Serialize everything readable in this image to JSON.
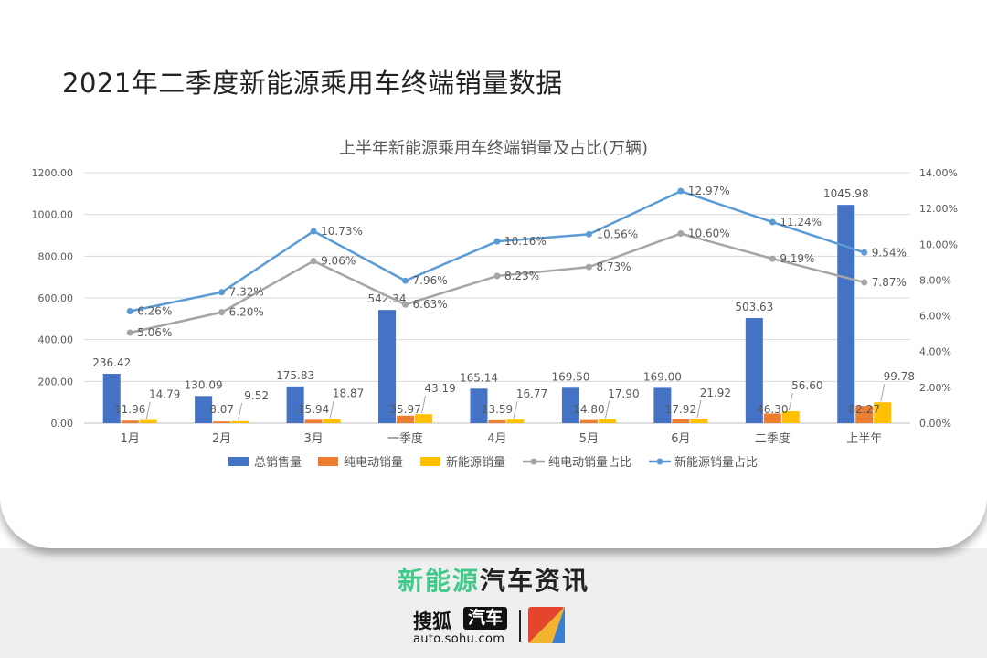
{
  "page_title": "2021年二季度新能源乘用车终端销量数据",
  "footer": {
    "brand_green": "新能源",
    "brand_dark": "汽车资讯",
    "logo_text": "搜狐",
    "logo_badge": "汽车",
    "logo_url": "auto.sohu.com"
  },
  "chart_data": {
    "type": "bar",
    "title": "上半年新能源乘用车终端销量及占比(万辆)",
    "categories": [
      "1月",
      "2月",
      "3月",
      "一季度",
      "4月",
      "5月",
      "6月",
      "二季度",
      "上半年"
    ],
    "series": [
      {
        "name": "总销售量",
        "type": "bar",
        "axis": "left",
        "color": "#4472c4",
        "values": [
          236.42,
          130.09,
          175.83,
          542.34,
          165.14,
          169.5,
          169.0,
          503.63,
          1045.98
        ],
        "labels": [
          "236.42",
          "130.09",
          "175.83",
          "542.34",
          "165.14",
          "169.50",
          "169.00",
          "503.63",
          "1045.98"
        ]
      },
      {
        "name": "纯电动销量",
        "type": "bar",
        "axis": "left",
        "color": "#ed7d31",
        "values": [
          11.96,
          8.07,
          15.94,
          35.97,
          13.59,
          14.8,
          17.92,
          46.3,
          82.27
        ],
        "labels": [
          "11.96",
          "8.07",
          "15.94",
          "35.97",
          "13.59",
          "14.80",
          "17.92",
          "46.30",
          "82.27"
        ]
      },
      {
        "name": "新能源销量",
        "type": "bar",
        "axis": "left",
        "color": "#ffc000",
        "values": [
          14.79,
          9.52,
          18.87,
          43.19,
          16.77,
          17.9,
          21.92,
          56.6,
          99.78
        ],
        "labels": [
          "14.79",
          "9.52",
          "18.87",
          "43.19",
          "16.77",
          "17.90",
          "21.92",
          "56.60",
          "99.78"
        ]
      },
      {
        "name": "纯电动销量占比",
        "type": "line",
        "axis": "right",
        "color": "#a5a5a5",
        "values": [
          5.06,
          6.2,
          9.06,
          6.63,
          8.23,
          8.73,
          10.6,
          9.19,
          7.87
        ],
        "labels": [
          "5.06%",
          "6.20%",
          "9.06%",
          "6.63%",
          "8.23%",
          "8.73%",
          "10.60%",
          "9.19%",
          "7.87%"
        ]
      },
      {
        "name": "新能源销量占比",
        "type": "line",
        "axis": "right",
        "color": "#5b9bd5",
        "values": [
          6.26,
          7.32,
          10.73,
          7.96,
          10.16,
          10.56,
          12.97,
          11.24,
          9.54
        ],
        "labels": [
          "6.26%",
          "7.32%",
          "10.73%",
          "7.96%",
          "10.16%",
          "10.56%",
          "12.97%",
          "11.24%",
          "9.54%"
        ]
      }
    ],
    "y_left": {
      "min": 0,
      "max": 1200,
      "step": 200,
      "ticks": [
        "0.00",
        "200.00",
        "400.00",
        "600.00",
        "800.00",
        "1000.00",
        "1200.00"
      ]
    },
    "y_right": {
      "min": 0,
      "max": 14,
      "step": 2,
      "ticks": [
        "0.00%",
        "2.00%",
        "4.00%",
        "6.00%",
        "8.00%",
        "10.00%",
        "12.00%",
        "14.00%"
      ]
    },
    "grid": true,
    "legend": "bottom"
  }
}
